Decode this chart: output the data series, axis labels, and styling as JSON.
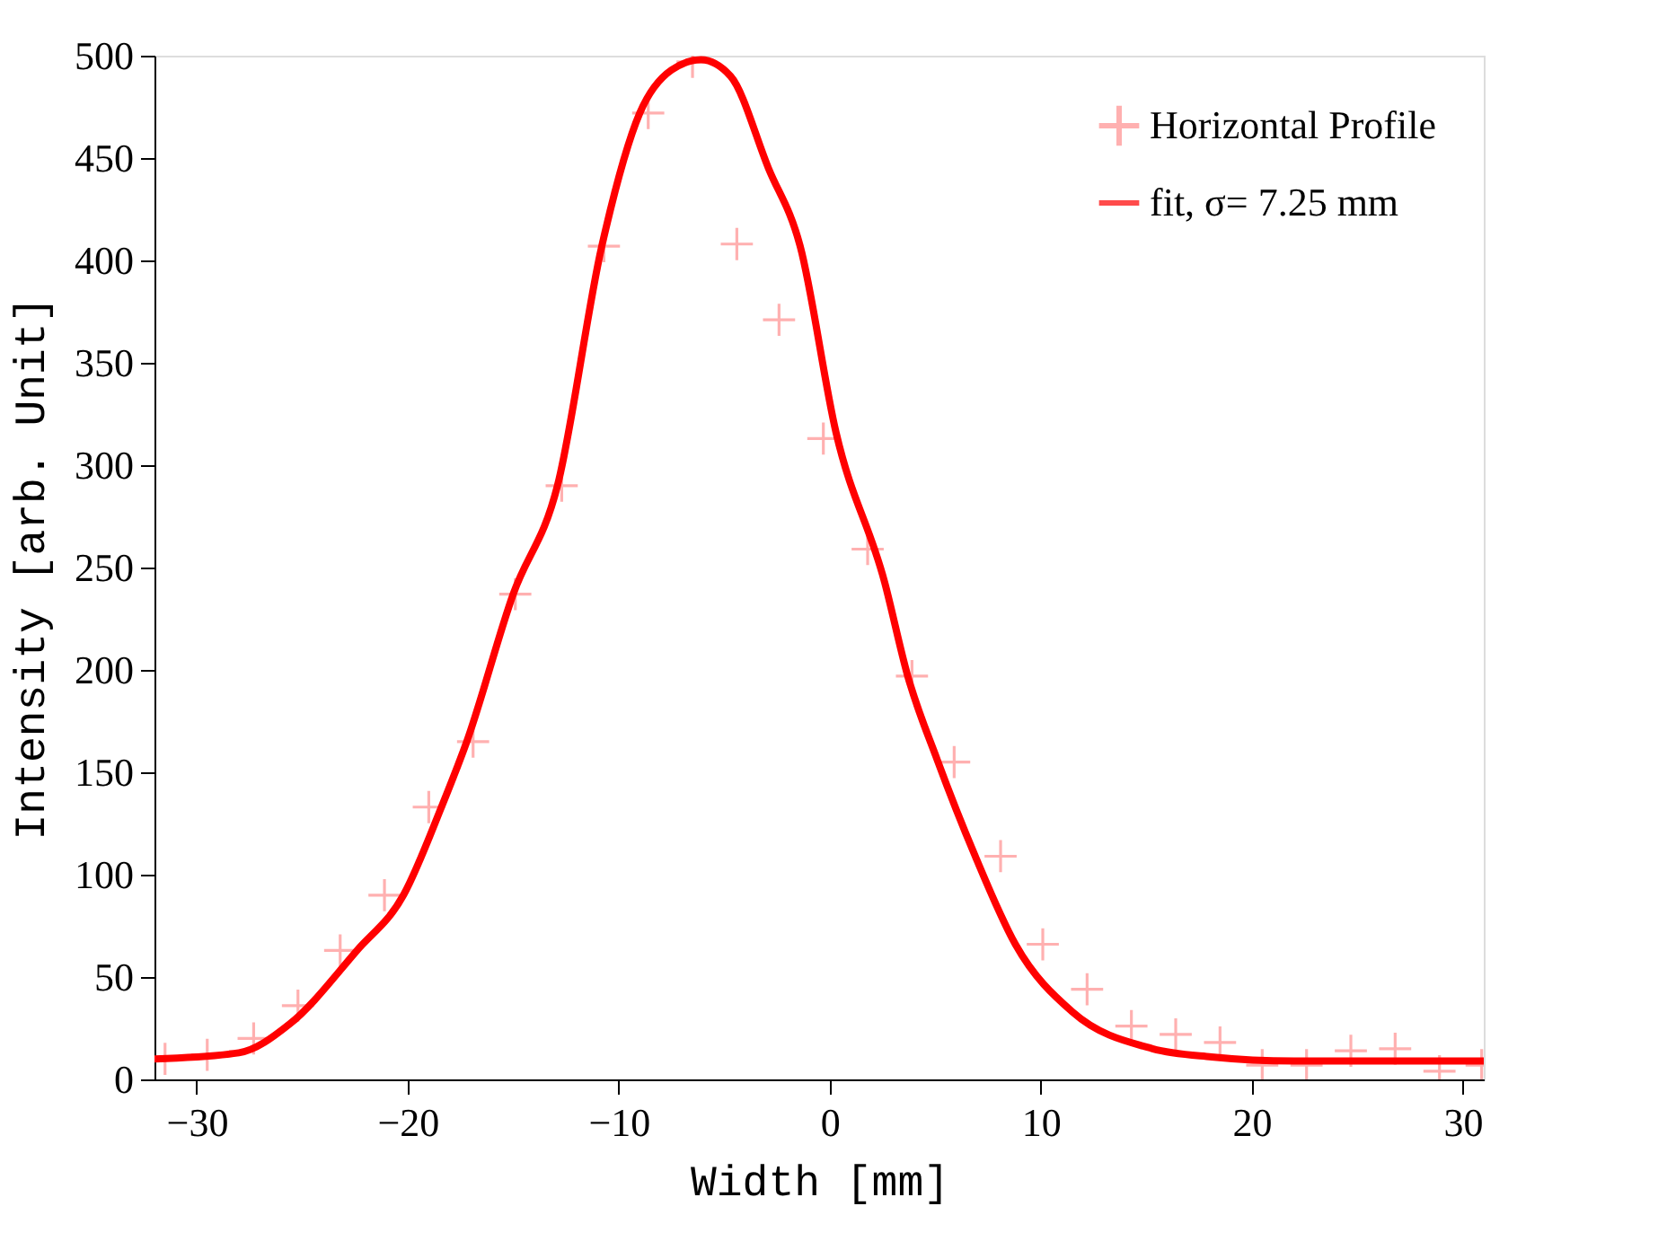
{
  "chart_data": {
    "type": "scatter",
    "xlabel": "Width [mm]",
    "ylabel": "Intensity [arb. Unit]",
    "xlim": [
      -32,
      31
    ],
    "ylim": [
      0,
      500
    ],
    "xticks": [
      -30,
      -20,
      -10,
      0,
      10,
      20,
      30
    ],
    "yticks": [
      0,
      50,
      100,
      150,
      200,
      250,
      300,
      350,
      400,
      450,
      500
    ],
    "grid": false,
    "legend": "top right",
    "series": [
      {
        "name": "Horizontal Profile",
        "marker": "cross",
        "color": "#ff9090",
        "x": [
          -31.5,
          -29.5,
          -27.3,
          -25.2,
          -23.2,
          -21.1,
          -19.0,
          -16.9,
          -14.9,
          -12.7,
          -10.7,
          -8.6,
          -6.5,
          -4.4,
          -2.4,
          -0.3,
          1.8,
          3.9,
          5.9,
          8.1,
          10.1,
          12.2,
          14.3,
          16.4,
          18.5,
          20.5,
          22.6,
          24.7,
          26.8,
          28.9,
          30.9
        ],
        "values": [
          10,
          12,
          20,
          36,
          63,
          90,
          133,
          165,
          237,
          290,
          407,
          472,
          497,
          408,
          371,
          313,
          259,
          197,
          155,
          109,
          66,
          44,
          26,
          22,
          18,
          7,
          7,
          14,
          15,
          4,
          7
        ]
      },
      {
        "name": "fit, σ= 7.25 mm",
        "type": "line",
        "line_style": "solid",
        "marker": "none",
        "color": "#ff0000",
        "x": [
          -32,
          -28,
          -25.6,
          -22.4,
          -20.2,
          -18.4,
          -17.2,
          -15,
          -12.9,
          -10.8,
          -9,
          -7.5,
          -6.1,
          -4.7,
          -2.9,
          -1.4,
          0.3,
          2.6,
          3.7,
          5.1,
          6.9,
          8.8,
          11.5,
          15.3,
          18.1,
          22,
          31
        ],
        "values": [
          10,
          13,
          27,
          63,
          90,
          133,
          165,
          237,
          290,
          407,
          472,
          493,
          498,
          490,
          445,
          407,
          316,
          243,
          197,
          156,
          109,
          66,
          33,
          15,
          11,
          9,
          9
        ]
      }
    ]
  }
}
